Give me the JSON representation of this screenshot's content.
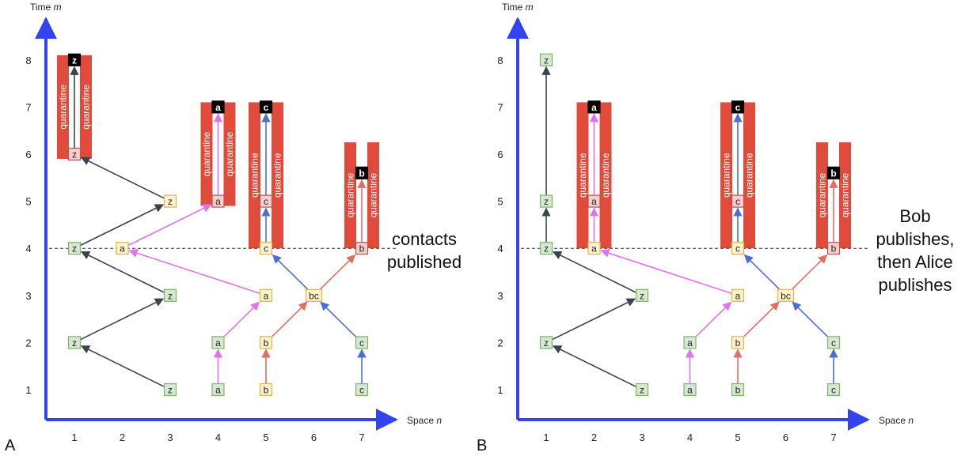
{
  "axes": {
    "time_label": "Time",
    "time_var": "m",
    "space_label": "Space",
    "space_var": "n",
    "time_ticks": [
      "1",
      "2",
      "3",
      "4",
      "5",
      "6",
      "7",
      "8"
    ],
    "space_ticks": [
      "1",
      "2",
      "3",
      "4",
      "5",
      "6",
      "7"
    ]
  },
  "quarantine_label": "quarantine",
  "colors": {
    "axis": "#3344ee",
    "z": "#3a4450",
    "a": "#e274ea",
    "b": "#e06f62",
    "c": "#4a6fd0",
    "quarantine": "#e04b3b",
    "node_green_fill": "#d5e8d4",
    "node_green_stroke": "#82b366",
    "node_yellow_fill": "#fff2cc",
    "node_yellow_stroke": "#d6b656",
    "node_pink_fill": "#f8cecc",
    "node_pink_stroke": "#b85450",
    "node_black_fill": "#000000"
  },
  "panels": [
    {
      "letter": "A",
      "annotation": [
        "contacts",
        "published"
      ],
      "nodes": [
        {
          "label": "z",
          "n": 3,
          "m": 1,
          "style": "green"
        },
        {
          "label": "z",
          "n": 1,
          "m": 2,
          "style": "green"
        },
        {
          "label": "z",
          "n": 3,
          "m": 3,
          "style": "green"
        },
        {
          "label": "z",
          "n": 1,
          "m": 4,
          "style": "green"
        },
        {
          "label": "z",
          "n": 3,
          "m": 5,
          "style": "yellow"
        },
        {
          "label": "z",
          "n": 1,
          "m": 6,
          "style": "pink"
        },
        {
          "label": "z",
          "n": 1,
          "m": 8,
          "style": "black"
        },
        {
          "label": "a",
          "n": 4,
          "m": 1,
          "style": "green"
        },
        {
          "label": "a",
          "n": 4,
          "m": 2,
          "style": "green"
        },
        {
          "label": "a",
          "n": 5,
          "m": 3,
          "style": "yellow"
        },
        {
          "label": "a",
          "n": 2,
          "m": 4,
          "style": "yellow"
        },
        {
          "label": "a",
          "n": 4,
          "m": 5,
          "style": "pink"
        },
        {
          "label": "a",
          "n": 4,
          "m": 7,
          "style": "black"
        },
        {
          "label": "b",
          "n": 5,
          "m": 1,
          "style": "yellow"
        },
        {
          "label": "b",
          "n": 5,
          "m": 2,
          "style": "yellow"
        },
        {
          "label": "bc",
          "n": 6,
          "m": 3,
          "style": "yellow"
        },
        {
          "label": "b",
          "n": 7,
          "m": 4,
          "style": "pink"
        },
        {
          "label": "b",
          "n": 7,
          "m": 5.6,
          "style": "black"
        },
        {
          "label": "c",
          "n": 7,
          "m": 1,
          "style": "green"
        },
        {
          "label": "c",
          "n": 7,
          "m": 2,
          "style": "green"
        },
        {
          "label": "c",
          "n": 5,
          "m": 4,
          "style": "yellow"
        },
        {
          "label": "c",
          "n": 5,
          "m": 5,
          "style": "pink"
        },
        {
          "label": "c",
          "n": 5,
          "m": 7,
          "style": "black"
        }
      ],
      "arrows": [
        {
          "from": [
            3,
            1
          ],
          "to": [
            1,
            2
          ],
          "color": "z"
        },
        {
          "from": [
            1,
            2
          ],
          "to": [
            3,
            3
          ],
          "color": "z"
        },
        {
          "from": [
            3,
            3
          ],
          "to": [
            1,
            4
          ],
          "color": "z"
        },
        {
          "from": [
            1,
            4
          ],
          "to": [
            3,
            5
          ],
          "color": "z"
        },
        {
          "from": [
            3,
            5
          ],
          "to": [
            1,
            6
          ],
          "color": "z"
        },
        {
          "from": [
            1,
            6
          ],
          "to": [
            1,
            8
          ],
          "color": "z"
        },
        {
          "from": [
            4,
            1
          ],
          "to": [
            4,
            2
          ],
          "color": "a"
        },
        {
          "from": [
            4,
            2
          ],
          "to": [
            5,
            3
          ],
          "color": "a"
        },
        {
          "from": [
            5,
            3
          ],
          "to": [
            2,
            4
          ],
          "color": "a"
        },
        {
          "from": [
            2,
            4
          ],
          "to": [
            4,
            5
          ],
          "color": "a"
        },
        {
          "from": [
            4,
            5
          ],
          "to": [
            4,
            7
          ],
          "color": "a"
        },
        {
          "from": [
            5,
            1
          ],
          "to": [
            5,
            2
          ],
          "color": "b"
        },
        {
          "from": [
            5,
            2
          ],
          "to": [
            6,
            3
          ],
          "color": "b"
        },
        {
          "from": [
            6,
            3
          ],
          "to": [
            7,
            4
          ],
          "color": "b"
        },
        {
          "from": [
            7,
            4
          ],
          "to": [
            7,
            5.6
          ],
          "color": "b"
        },
        {
          "from": [
            7,
            1
          ],
          "to": [
            7,
            2
          ],
          "color": "c"
        },
        {
          "from": [
            7,
            2
          ],
          "to": [
            6,
            3
          ],
          "color": "c"
        },
        {
          "from": [
            6,
            3
          ],
          "to": [
            5,
            4
          ],
          "color": "c"
        },
        {
          "from": [
            5,
            4
          ],
          "to": [
            5,
            5
          ],
          "color": "c"
        },
        {
          "from": [
            5,
            5
          ],
          "to": [
            5,
            7
          ],
          "color": "c"
        }
      ],
      "quarantines": [
        {
          "n": 1,
          "m_bottom": 5.9,
          "m_top": 8.1
        },
        {
          "n": 4,
          "m_bottom": 4.9,
          "m_top": 7.1
        },
        {
          "n": 5,
          "m_bottom": 4.0,
          "m_top": 7.1
        },
        {
          "n": 7,
          "m_bottom": 4.0,
          "m_top": 6.25
        }
      ]
    },
    {
      "letter": "B",
      "annotation": [
        "Bob",
        "publishes,",
        "then Alice",
        "publishes"
      ],
      "nodes": [
        {
          "label": "z",
          "n": 3,
          "m": 1,
          "style": "green"
        },
        {
          "label": "z",
          "n": 1,
          "m": 2,
          "style": "green"
        },
        {
          "label": "z",
          "n": 3,
          "m": 3,
          "style": "green"
        },
        {
          "label": "z",
          "n": 1,
          "m": 4,
          "style": "green"
        },
        {
          "label": "z",
          "n": 1,
          "m": 5,
          "style": "green"
        },
        {
          "label": "z",
          "n": 1,
          "m": 8,
          "style": "green"
        },
        {
          "label": "a",
          "n": 4,
          "m": 1,
          "style": "green"
        },
        {
          "label": "a",
          "n": 4,
          "m": 2,
          "style": "green"
        },
        {
          "label": "a",
          "n": 5,
          "m": 3,
          "style": "yellow"
        },
        {
          "label": "a",
          "n": 2,
          "m": 4,
          "style": "yellow"
        },
        {
          "label": "a",
          "n": 2,
          "m": 5,
          "style": "pink"
        },
        {
          "label": "a",
          "n": 2,
          "m": 7,
          "style": "black"
        },
        {
          "label": "b",
          "n": 5,
          "m": 1,
          "style": "green"
        },
        {
          "label": "b",
          "n": 5,
          "m": 2,
          "style": "yellow"
        },
        {
          "label": "bc",
          "n": 6,
          "m": 3,
          "style": "yellow"
        },
        {
          "label": "b",
          "n": 7,
          "m": 4,
          "style": "pink"
        },
        {
          "label": "b",
          "n": 7,
          "m": 5.6,
          "style": "black"
        },
        {
          "label": "c",
          "n": 7,
          "m": 1,
          "style": "green"
        },
        {
          "label": "c",
          "n": 7,
          "m": 2,
          "style": "green"
        },
        {
          "label": "c",
          "n": 5,
          "m": 4,
          "style": "yellow"
        },
        {
          "label": "c",
          "n": 5,
          "m": 5,
          "style": "pink"
        },
        {
          "label": "c",
          "n": 5,
          "m": 7,
          "style": "black"
        }
      ],
      "arrows": [
        {
          "from": [
            3,
            1
          ],
          "to": [
            1,
            2
          ],
          "color": "z"
        },
        {
          "from": [
            1,
            2
          ],
          "to": [
            3,
            3
          ],
          "color": "z"
        },
        {
          "from": [
            3,
            3
          ],
          "to": [
            1,
            4
          ],
          "color": "z"
        },
        {
          "from": [
            1,
            4
          ],
          "to": [
            1,
            5
          ],
          "color": "z"
        },
        {
          "from": [
            1,
            5
          ],
          "to": [
            1,
            8
          ],
          "color": "z"
        },
        {
          "from": [
            4,
            1
          ],
          "to": [
            4,
            2
          ],
          "color": "a"
        },
        {
          "from": [
            4,
            2
          ],
          "to": [
            5,
            3
          ],
          "color": "a"
        },
        {
          "from": [
            5,
            3
          ],
          "to": [
            2,
            4
          ],
          "color": "a"
        },
        {
          "from": [
            2,
            4
          ],
          "to": [
            2,
            5
          ],
          "color": "a"
        },
        {
          "from": [
            2,
            5
          ],
          "to": [
            2,
            7
          ],
          "color": "a"
        },
        {
          "from": [
            5,
            1
          ],
          "to": [
            5,
            2
          ],
          "color": "b"
        },
        {
          "from": [
            5,
            2
          ],
          "to": [
            6,
            3
          ],
          "color": "b"
        },
        {
          "from": [
            6,
            3
          ],
          "to": [
            7,
            4
          ],
          "color": "b"
        },
        {
          "from": [
            7,
            4
          ],
          "to": [
            7,
            5.6
          ],
          "color": "b"
        },
        {
          "from": [
            7,
            1
          ],
          "to": [
            7,
            2
          ],
          "color": "c"
        },
        {
          "from": [
            7,
            2
          ],
          "to": [
            6,
            3
          ],
          "color": "c"
        },
        {
          "from": [
            6,
            3
          ],
          "to": [
            5,
            4
          ],
          "color": "c"
        },
        {
          "from": [
            5,
            4
          ],
          "to": [
            5,
            5
          ],
          "color": "c"
        },
        {
          "from": [
            5,
            5
          ],
          "to": [
            5,
            7
          ],
          "color": "c"
        }
      ],
      "quarantines": [
        {
          "n": 2,
          "m_bottom": 4.0,
          "m_top": 7.1
        },
        {
          "n": 5,
          "m_bottom": 4.0,
          "m_top": 7.1
        },
        {
          "n": 7,
          "m_bottom": 4.0,
          "m_top": 6.25
        }
      ]
    }
  ]
}
